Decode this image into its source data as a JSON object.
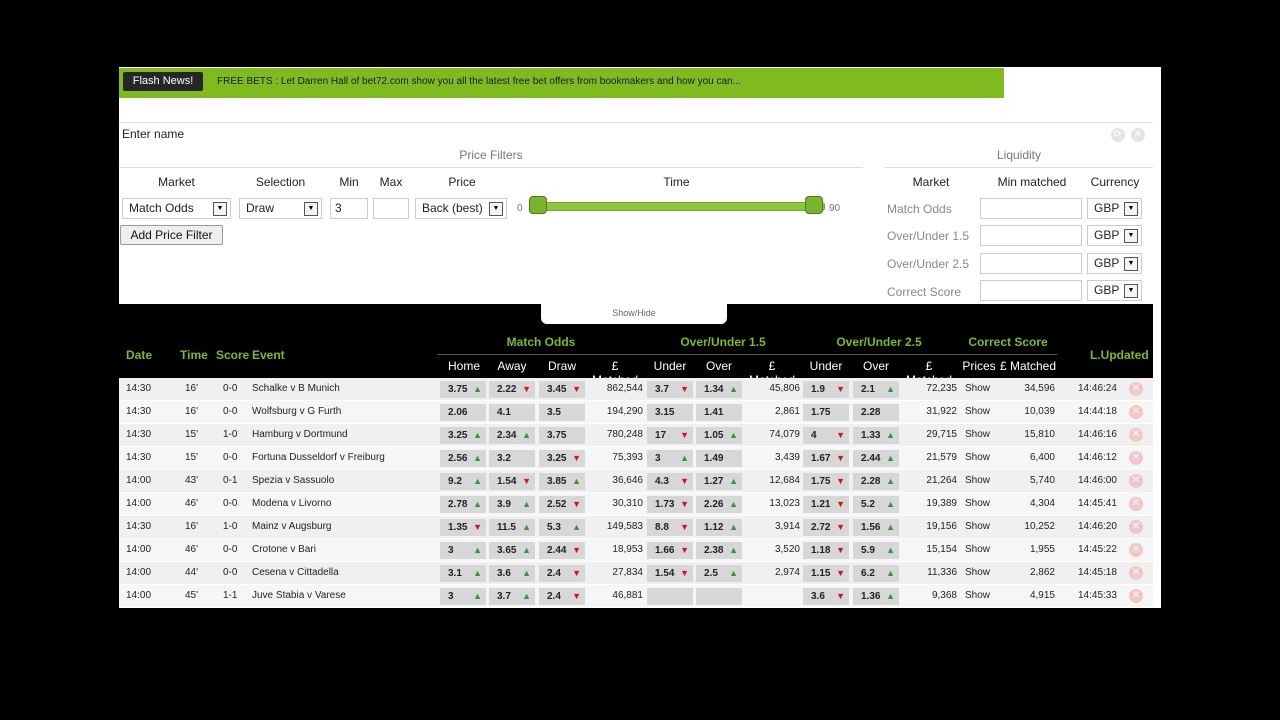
{
  "news": {
    "flash_label": "Flash News!",
    "text": "FREE BETS :     Let Darren Hall of bet72.com show you all the latest free bet offers from bookmakers and how you can..."
  },
  "filters": {
    "name_placeholder": "Enter name",
    "price_filters_title": "Price Filters",
    "liquidity_title": "Liquidity",
    "col_market": "Market",
    "col_selection": "Selection",
    "col_min": "Min",
    "col_max": "Max",
    "col_price": "Price",
    "col_time": "Time",
    "market_value": "Match Odds",
    "selection_value": "Draw",
    "min_value": "3",
    "max_value": "",
    "price_value": "Back (best)",
    "time_min": "0",
    "time_max": "90",
    "time_range": [
      0,
      90
    ],
    "add_button": "Add Price Filter",
    "liq_col_market": "Market",
    "liq_col_min_matched": "Min matched",
    "liq_col_currency": "Currency",
    "liquidity": [
      {
        "market": "Match Odds",
        "min_matched": "",
        "currency": "GBP"
      },
      {
        "market": "Over/Under 1.5",
        "min_matched": "",
        "currency": "GBP"
      },
      {
        "market": "Over/Under 2.5",
        "min_matched": "",
        "currency": "GBP"
      },
      {
        "market": "Correct Score",
        "min_matched": "",
        "currency": "GBP"
      }
    ],
    "show_hide": "Show/Hide"
  },
  "table": {
    "h_date": "Date",
    "h_time": "Time",
    "h_score": "Score",
    "h_event": "Event",
    "g_match_odds": "Match Odds",
    "g_ou15": "Over/Under 1.5",
    "g_ou25": "Over/Under 2.5",
    "g_cs": "Correct Score",
    "h_updated": "L.Updated",
    "s_home": "Home",
    "s_away": "Away",
    "s_draw": "Draw",
    "s_matched1": "£ Matched",
    "s_under1": "Under",
    "s_over1": "Over",
    "s_matched2": "£ Matched",
    "s_under2": "Under",
    "s_over2": "Over",
    "s_matched3": "£ Matched",
    "s_prices": "Prices",
    "s_matched4": "£ Matched",
    "rows": [
      {
        "date": "14:30",
        "time": "16'",
        "score": "0-0",
        "event": "Schalke v B Munich",
        "home": "3.75",
        "home_t": "up",
        "away": "2.22",
        "away_t": "down",
        "draw": "3.45",
        "draw_t": "down",
        "m1": "862,544",
        "u1": "3.7",
        "u1_t": "down",
        "o1": "1.34",
        "o1_t": "up",
        "m2": "45,806",
        "u2": "1.9",
        "u2_t": "down",
        "o2": "2.1",
        "o2_t": "up",
        "m3": "72,235",
        "prices": "Show",
        "m4": "34,596",
        "updated": "14:46:24"
      },
      {
        "date": "14:30",
        "time": "16'",
        "score": "0-0",
        "event": "Wolfsburg v G Furth",
        "home": "2.06",
        "home_t": "",
        "away": "4.1",
        "away_t": "",
        "draw": "3.5",
        "draw_t": "",
        "m1": "194,290",
        "u1": "3.15",
        "u1_t": "",
        "o1": "1.41",
        "o1_t": "",
        "m2": "2,861",
        "u2": "1.75",
        "u2_t": "",
        "o2": "2.28",
        "o2_t": "",
        "m3": "31,922",
        "prices": "Show",
        "m4": "10,039",
        "updated": "14:44:18"
      },
      {
        "date": "14:30",
        "time": "15'",
        "score": "1-0",
        "event": "Hamburg v Dortmund",
        "home": "3.25",
        "home_t": "up",
        "away": "2.34",
        "away_t": "up",
        "draw": "3.75",
        "draw_t": "",
        "m1": "780,248",
        "u1": "17",
        "u1_t": "down",
        "o1": "1.05",
        "o1_t": "up",
        "m2": "74,079",
        "u2": "4",
        "u2_t": "down",
        "o2": "1.33",
        "o2_t": "up",
        "m3": "29,715",
        "prices": "Show",
        "m4": "15,810",
        "updated": "14:46:16"
      },
      {
        "date": "14:30",
        "time": "15'",
        "score": "0-0",
        "event": "Fortuna Dusseldorf v Freiburg",
        "home": "2.56",
        "home_t": "up",
        "away": "3.2",
        "away_t": "",
        "draw": "3.25",
        "draw_t": "down",
        "m1": "75,393",
        "u1": "3",
        "u1_t": "up",
        "o1": "1.49",
        "o1_t": "",
        "m2": "3,439",
        "u2": "1.67",
        "u2_t": "down",
        "o2": "2.44",
        "o2_t": "up",
        "m3": "21,579",
        "prices": "Show",
        "m4": "6,400",
        "updated": "14:46:12"
      },
      {
        "date": "14:00",
        "time": "43'",
        "score": "0-1",
        "event": "Spezia v Sassuolo",
        "home": "9.2",
        "home_t": "up",
        "away": "1.54",
        "away_t": "down",
        "draw": "3.85",
        "draw_t": "up",
        "m1": "36,646",
        "u1": "4.3",
        "u1_t": "down",
        "o1": "1.27",
        "o1_t": "up",
        "m2": "12,684",
        "u2": "1.75",
        "u2_t": "down",
        "o2": "2.28",
        "o2_t": "up",
        "m3": "21,264",
        "prices": "Show",
        "m4": "5,740",
        "updated": "14:46:00"
      },
      {
        "date": "14:00",
        "time": "46'",
        "score": "0-0",
        "event": "Modena v Livorno",
        "home": "2.78",
        "home_t": "up",
        "away": "3.9",
        "away_t": "up",
        "draw": "2.52",
        "draw_t": "down",
        "m1": "30,310",
        "u1": "1.73",
        "u1_t": "down",
        "o1": "2.26",
        "o1_t": "up",
        "m2": "13,023",
        "u2": "1.21",
        "u2_t": "down",
        "o2": "5.2",
        "o2_t": "up",
        "m3": "19,389",
        "prices": "Show",
        "m4": "4,304",
        "updated": "14:45:41"
      },
      {
        "date": "14:30",
        "time": "16'",
        "score": "1-0",
        "event": "Mainz v Augsburg",
        "home": "1.35",
        "home_t": "down",
        "away": "11.5",
        "away_t": "up",
        "draw": "5.3",
        "draw_t": "up",
        "m1": "149,583",
        "u1": "8.8",
        "u1_t": "down",
        "o1": "1.12",
        "o1_t": "up",
        "m2": "3,914",
        "u2": "2.72",
        "u2_t": "down",
        "o2": "1.56",
        "o2_t": "up",
        "m3": "19,156",
        "prices": "Show",
        "m4": "10,252",
        "updated": "14:46:20"
      },
      {
        "date": "14:00",
        "time": "46'",
        "score": "0-0",
        "event": "Crotone v Bari",
        "home": "3",
        "home_t": "up",
        "away": "3.65",
        "away_t": "up",
        "draw": "2.44",
        "draw_t": "down",
        "m1": "18,953",
        "u1": "1.66",
        "u1_t": "down",
        "o1": "2.38",
        "o1_t": "up",
        "m2": "3,520",
        "u2": "1.18",
        "u2_t": "down",
        "o2": "5.9",
        "o2_t": "up",
        "m3": "15,154",
        "prices": "Show",
        "m4": "1,955",
        "updated": "14:45:22"
      },
      {
        "date": "14:00",
        "time": "44'",
        "score": "0-0",
        "event": "Cesena v Cittadella",
        "home": "3.1",
        "home_t": "up",
        "away": "3.6",
        "away_t": "up",
        "draw": "2.4",
        "draw_t": "down",
        "m1": "27,834",
        "u1": "1.54",
        "u1_t": "down",
        "o1": "2.5",
        "o1_t": "up",
        "m2": "2,974",
        "u2": "1.15",
        "u2_t": "down",
        "o2": "6.2",
        "o2_t": "up",
        "m3": "11,336",
        "prices": "Show",
        "m4": "2,862",
        "updated": "14:45:18"
      },
      {
        "date": "14:00",
        "time": "45'",
        "score": "1-1",
        "event": "Juve Stabia v Varese",
        "home": "3",
        "home_t": "up",
        "away": "3.7",
        "away_t": "up",
        "draw": "2.4",
        "draw_t": "down",
        "m1": "46,881",
        "u1": "",
        "u1_t": "",
        "o1": "",
        "o1_t": "",
        "m2": "",
        "u2": "3.6",
        "u2_t": "down",
        "o2": "1.36",
        "o2_t": "up",
        "m3": "9,368",
        "prices": "Show",
        "m4": "4,915",
        "updated": "14:45:33"
      }
    ]
  },
  "colors": {
    "accent": "#7fba1e",
    "up": "#2a9d2a",
    "down": "#dd1111"
  }
}
